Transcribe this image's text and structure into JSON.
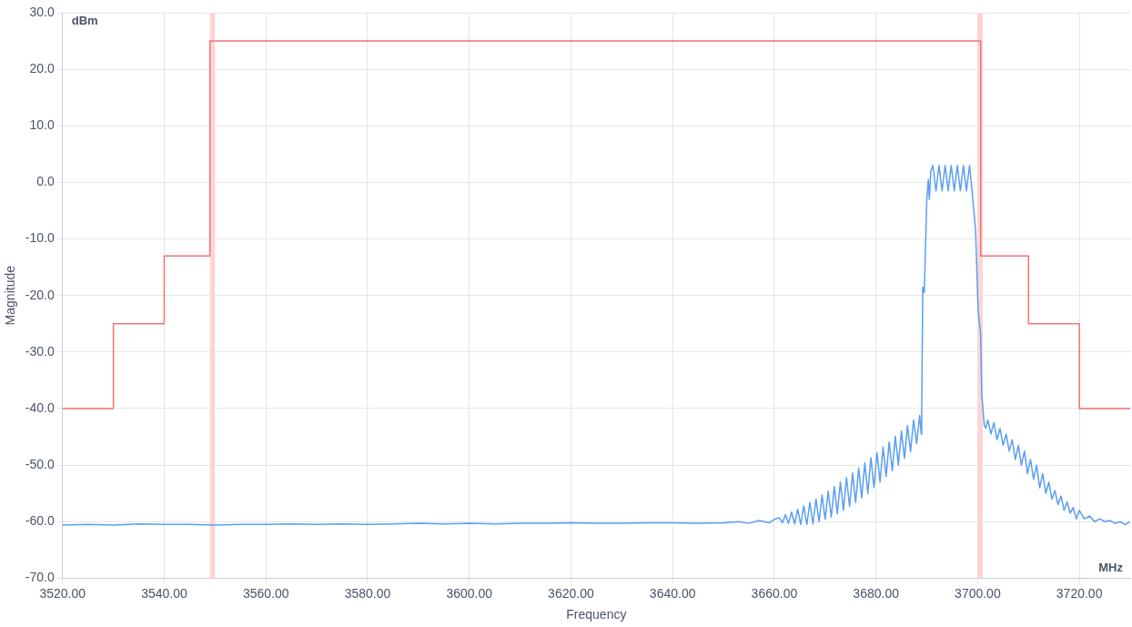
{
  "chart_data": {
    "type": "line",
    "xlabel": "Frequency",
    "ylabel": "Magnitude",
    "annotations": [
      "dBm",
      "MHz"
    ],
    "xlim": [
      3520,
      3730
    ],
    "xticks": [
      {
        "value": 3520,
        "label": "3520.00"
      },
      {
        "value": 3540,
        "label": "3540.00"
      },
      {
        "value": 3560,
        "label": "3560.00"
      },
      {
        "value": 3580,
        "label": "3580.00"
      },
      {
        "value": 3600,
        "label": "3600.00"
      },
      {
        "value": 3620,
        "label": "3620.00"
      },
      {
        "value": 3640,
        "label": "3640.00"
      },
      {
        "value": 3660,
        "label": "3660.00"
      },
      {
        "value": 3680,
        "label": "3680.00"
      },
      {
        "value": 3700,
        "label": "3700.00"
      },
      {
        "value": 3720,
        "label": "3720.00"
      }
    ],
    "ylim": [
      -70,
      30
    ],
    "yticks": [
      {
        "value": -70,
        "label": "-70.0"
      },
      {
        "value": -60,
        "label": "-60.0"
      },
      {
        "value": -50,
        "label": "-50.0"
      },
      {
        "value": -40,
        "label": "-40.0"
      },
      {
        "value": -30,
        "label": "-30.0"
      },
      {
        "value": -20,
        "label": "-20.0"
      },
      {
        "value": -10,
        "label": "-10.0"
      },
      {
        "value": 0,
        "label": "0.0"
      },
      {
        "value": 10,
        "label": "10.0"
      },
      {
        "value": 20,
        "label": "20.0"
      },
      {
        "value": 30,
        "label": "30.0"
      }
    ],
    "grid": true,
    "bands": [
      {
        "axis": "x",
        "from": 3549,
        "to": 3550,
        "color": "#fdd5d5"
      },
      {
        "axis": "x",
        "from": 3700,
        "to": 3701,
        "color": "#fdd5d5"
      }
    ],
    "series": [
      {
        "type": "step",
        "color": "#f47272",
        "x": [
          3520,
          3530,
          3540,
          3549,
          3700.6,
          3710,
          3720,
          3730
        ],
        "values": [
          -40,
          -25,
          -13,
          25,
          -13,
          -25,
          -40,
          -40
        ]
      },
      {
        "type": "line",
        "color": "#5b9ef2",
        "x": [
          3520,
          3525,
          3530,
          3535,
          3540,
          3545,
          3550,
          3555,
          3560,
          3565,
          3570,
          3575,
          3580,
          3585,
          3590,
          3595,
          3600,
          3605,
          3610,
          3615,
          3620,
          3625,
          3630,
          3635,
          3640,
          3645,
          3650,
          3653,
          3655,
          3657,
          3659,
          3660,
          3661,
          3661.6,
          3662.2,
          3662.8,
          3663.4,
          3664,
          3664.6,
          3665.2,
          3665.8,
          3666.4,
          3667,
          3667.6,
          3668.2,
          3668.8,
          3669.4,
          3670,
          3670.6,
          3671.2,
          3671.8,
          3672.4,
          3673,
          3673.6,
          3674.2,
          3674.8,
          3675.4,
          3676,
          3676.6,
          3677.2,
          3677.8,
          3678.4,
          3679,
          3679.6,
          3680.2,
          3680.8,
          3681.4,
          3682,
          3682.6,
          3683.2,
          3683.8,
          3684.4,
          3685,
          3685.6,
          3686.2,
          3686.8,
          3687.4,
          3688,
          3688.6,
          3688.9,
          3689,
          3689.2,
          3689.5,
          3690,
          3690.3,
          3690.5,
          3690.8,
          3691.2,
          3691.8,
          3692.4,
          3693,
          3693.6,
          3694.2,
          3694.8,
          3695.4,
          3696,
          3696.6,
          3697.2,
          3697.8,
          3698.4,
          3699,
          3699.6,
          3700.1,
          3700.6,
          3700.8,
          3701.3,
          3701.6,
          3702,
          3702.6,
          3703.2,
          3703.8,
          3704.4,
          3705,
          3705.6,
          3706.2,
          3706.8,
          3707.4,
          3708,
          3708.6,
          3709.2,
          3709.8,
          3710.4,
          3711,
          3711.6,
          3712.2,
          3712.8,
          3713.4,
          3714,
          3714.6,
          3715.2,
          3715.8,
          3716.4,
          3717,
          3717.6,
          3718.2,
          3718.8,
          3719.4,
          3720,
          3721,
          3722,
          3723,
          3724,
          3725,
          3726,
          3727,
          3728,
          3729,
          3730
        ],
        "values": [
          -60.6,
          -60.5,
          -60.6,
          -60.4,
          -60.5,
          -60.5,
          -60.6,
          -60.5,
          -60.5,
          -60.4,
          -60.5,
          -60.4,
          -60.5,
          -60.4,
          -60.3,
          -60.4,
          -60.3,
          -60.4,
          -60.3,
          -60.3,
          -60.2,
          -60.3,
          -60.3,
          -60.2,
          -60.2,
          -60.3,
          -60.2,
          -60,
          -60.3,
          -59.8,
          -60.2,
          -59.6,
          -59.3,
          -60.2,
          -58.8,
          -60.3,
          -58.3,
          -60.4,
          -57.8,
          -60.5,
          -57.2,
          -60.5,
          -56.6,
          -60.4,
          -56,
          -60,
          -55.3,
          -59.6,
          -54.6,
          -59.2,
          -53.8,
          -58.6,
          -53,
          -58,
          -52.2,
          -57.3,
          -51.4,
          -56.6,
          -50.5,
          -55.8,
          -49.6,
          -55,
          -48.7,
          -54,
          -47.8,
          -53,
          -46.8,
          -52,
          -45.9,
          -51,
          -44.9,
          -50,
          -44,
          -48.8,
          -43,
          -47.6,
          -42,
          -46.2,
          -41.2,
          -44.5,
          -40.5,
          -18.5,
          -19.5,
          -3,
          0.5,
          -3,
          2,
          3,
          -1.5,
          3,
          -1.5,
          3,
          -1.5,
          3,
          -1.5,
          3,
          -1.5,
          3,
          -1.5,
          3,
          -2.5,
          -8.6,
          -22.7,
          -27,
          -37.4,
          -42.9,
          -43.5,
          -42,
          -44.5,
          -42.5,
          -45.5,
          -43.5,
          -46.5,
          -44.5,
          -47.5,
          -45.5,
          -49,
          -46.5,
          -50,
          -47.5,
          -51.5,
          -49,
          -52.5,
          -50,
          -54,
          -51.5,
          -55,
          -53,
          -56,
          -54.5,
          -57,
          -55.5,
          -58,
          -56.5,
          -58.5,
          -57.5,
          -59.5,
          -58,
          -59.5,
          -59,
          -60,
          -59.5,
          -60,
          -59.8,
          -60.3,
          -60,
          -60.5,
          -60
        ]
      }
    ]
  }
}
